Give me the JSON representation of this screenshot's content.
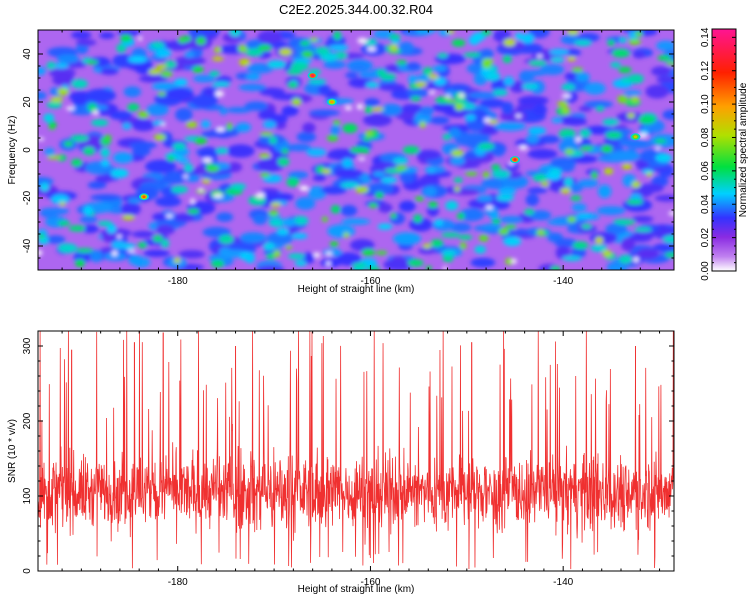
{
  "chart_data": [
    {
      "type": "heatmap",
      "title": "C2E2.2025.344.00.32.R04",
      "xlabel": "Height of straight line (km)",
      "ylabel": "Frequency (Hz)",
      "xlim": [
        -194.5,
        -128.5
      ],
      "ylim": [
        -50,
        50
      ],
      "xticks": [
        -180,
        -160,
        -140
      ],
      "yticks": [
        -40,
        -20,
        0,
        20,
        40
      ],
      "colorbar": {
        "label": "Normalized spectral amplitude",
        "range": [
          0.0,
          0.145
        ],
        "ticks": [
          0.0,
          0.02,
          0.04,
          0.06,
          0.08,
          0.1,
          0.12,
          0.14
        ],
        "colormap": [
          "#ffffff",
          "#c080f0",
          "#8a2be2",
          "#3333ff",
          "#00d0ff",
          "#00e040",
          "#b0e000",
          "#ffa000",
          "#ff2000",
          "#ff1493"
        ]
      },
      "note": "Dense speckle field; typical values 0.02-0.05, scattered peaks 0.06-0.09, a few hot spots near 0.12-0.14.",
      "hot_spots": [
        {
          "x": -166.0,
          "y": 31.0,
          "value": 0.135
        },
        {
          "x": -145.0,
          "y": -4.0,
          "value": 0.13
        },
        {
          "x": -183.5,
          "y": -19.5,
          "value": 0.11
        },
        {
          "x": -164.0,
          "y": 20.0,
          "value": 0.1
        },
        {
          "x": -132.5,
          "y": 5.5,
          "value": 0.09
        }
      ]
    },
    {
      "type": "line",
      "title": "",
      "xlabel": "Height of straight line (km)",
      "ylabel": "SNR (10 * v/v)",
      "xlim": [
        -194.5,
        -128.5
      ],
      "ylim": [
        0,
        320
      ],
      "xticks": [
        -180,
        -160,
        -140
      ],
      "yticks": [
        0,
        100,
        200,
        300
      ],
      "series": [
        {
          "name": "SNR",
          "color": "#ff0000",
          "mean": 105,
          "typical_range": [
            40,
            180
          ],
          "peaks": [
            {
              "x": -191.0,
              "y": 295
            },
            {
              "x": -184.5,
              "y": 305
            },
            {
              "x": -181.5,
              "y": 318
            },
            {
              "x": -174.0,
              "y": 300
            },
            {
              "x": -149.5,
              "y": 305
            },
            {
              "x": -132.5,
              "y": 300
            }
          ]
        }
      ]
    }
  ]
}
